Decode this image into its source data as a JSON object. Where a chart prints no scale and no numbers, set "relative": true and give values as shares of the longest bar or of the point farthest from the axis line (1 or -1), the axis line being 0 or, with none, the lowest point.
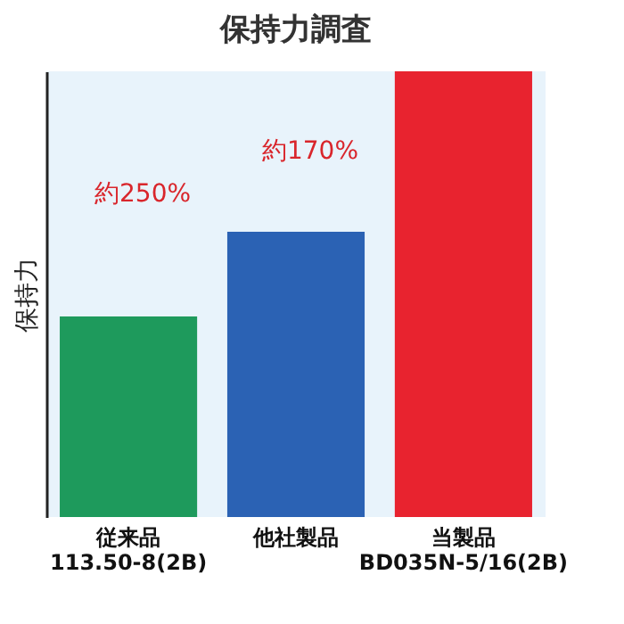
{
  "chart_data": {
    "type": "bar",
    "title": "保持力調査",
    "ylabel": "保持力",
    "relative": true,
    "categories": [
      "従来品\n113.50-8(2B)",
      "他社製品",
      "当製品\nBD035N-5/16(2B)"
    ],
    "values": [
      0.45,
      0.64,
      1
    ],
    "colors": [
      "#1e9a5c",
      "#2b62b4",
      "#e8232f"
    ],
    "annotations": [
      "約250%",
      "約170%"
    ]
  }
}
